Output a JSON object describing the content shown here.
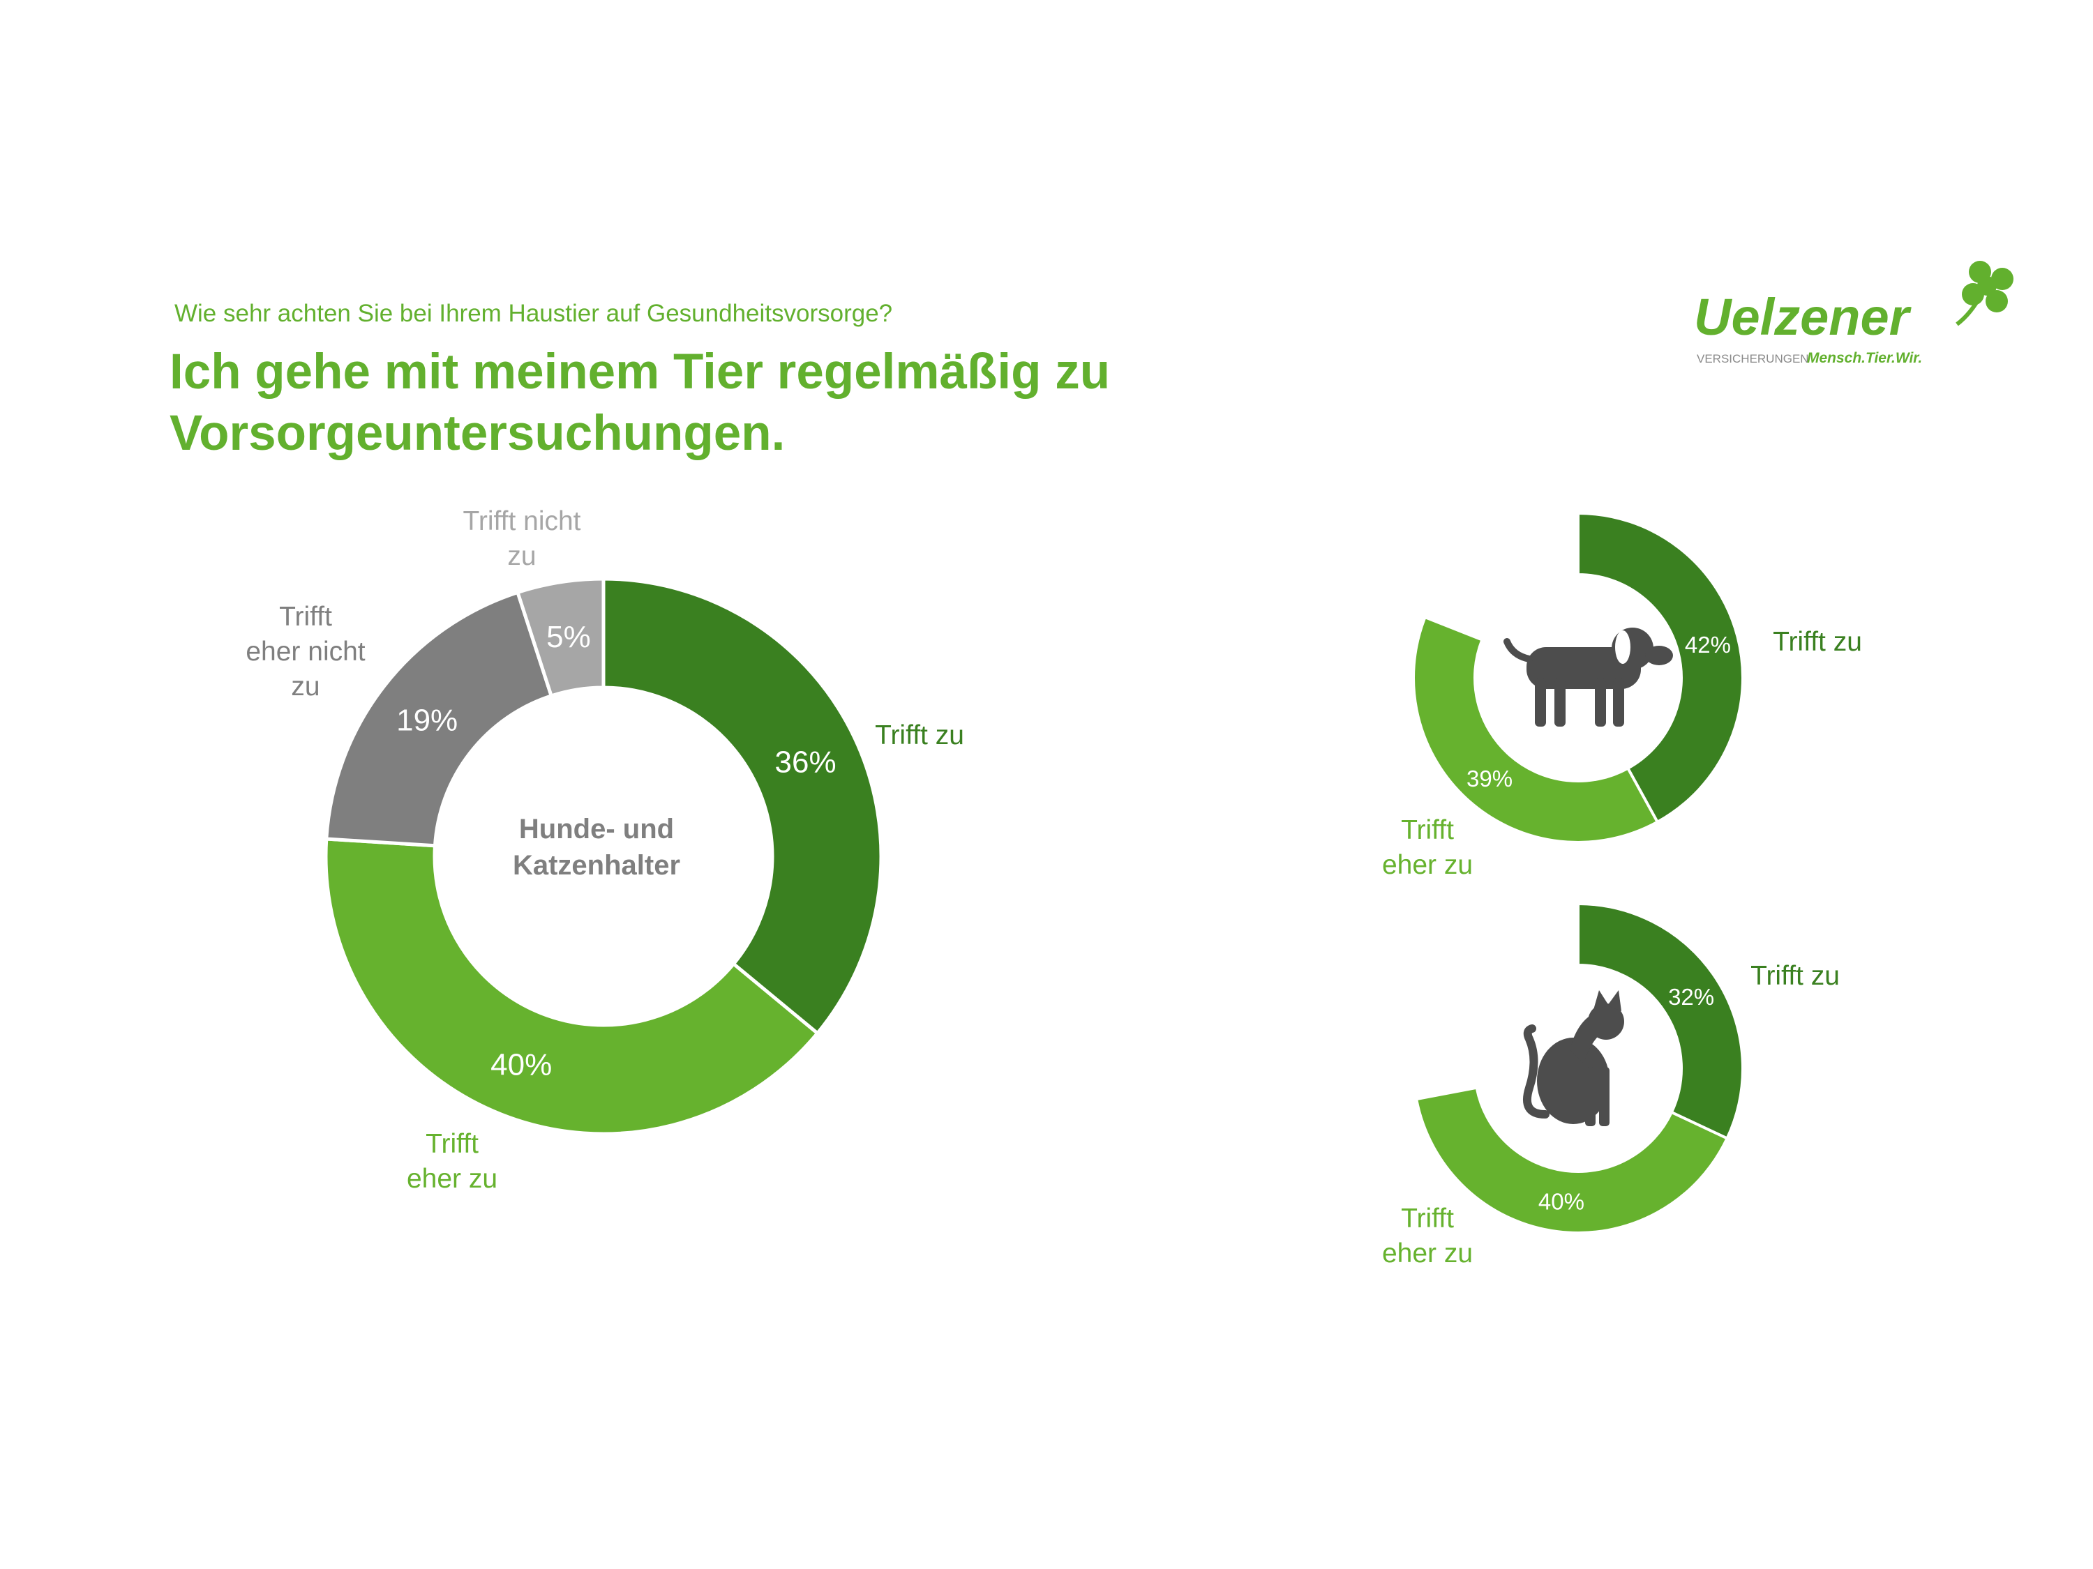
{
  "header": {
    "subtitle": "Wie sehr achten Sie bei Ihrem Haustier auf Gesundheitsvorsorge?",
    "title": "Ich gehe mit meinem Tier regelmäßig zu Vorsorgeuntersuchungen."
  },
  "logo": {
    "brand": "Uelzener",
    "tagline_left": "VERSICHERUNGEN",
    "tagline_right": "Mensch.Tier.Wir.",
    "icon": "clover-icon"
  },
  "colors": {
    "dark_green": "#3A8020",
    "light_green": "#66B22E",
    "dark_gray": "#7F7F7F",
    "light_gray": "#A6A6A6",
    "title_green": "#62B02E",
    "icon_gray": "#4D4D4D"
  },
  "chart_data": [
    {
      "type": "pie",
      "center_label": [
        "Hunde- und",
        "Katzenhalter"
      ],
      "categories": [
        "Trifft zu",
        "Trifft eher zu",
        "Trifft eher nicht zu",
        "Trifft nicht zu"
      ],
      "values": [
        36,
        40,
        19,
        5
      ],
      "value_labels": [
        "36%",
        "40%",
        "19%",
        "5%"
      ],
      "category_labels": [
        [
          "Trifft zu"
        ],
        [
          "Trifft",
          "eher zu"
        ],
        [
          "Trifft",
          "eher nicht",
          "zu"
        ],
        [
          "Trifft nicht",
          "zu"
        ]
      ]
    },
    {
      "type": "pie",
      "center_icon": "dog-icon",
      "categories": [
        "Trifft zu",
        "Trifft eher zu"
      ],
      "values": [
        42,
        39
      ],
      "value_labels": [
        "42%",
        "39%"
      ],
      "category_labels": [
        [
          "Trifft zu"
        ],
        [
          "Trifft",
          "eher zu"
        ]
      ]
    },
    {
      "type": "pie",
      "center_icon": "cat-icon",
      "categories": [
        "Trifft zu",
        "Trifft eher zu"
      ],
      "values": [
        32,
        40
      ],
      "value_labels": [
        "32%",
        "40%"
      ],
      "category_labels": [
        [
          "Trifft zu"
        ],
        [
          "Trifft",
          "eher zu"
        ]
      ]
    }
  ]
}
